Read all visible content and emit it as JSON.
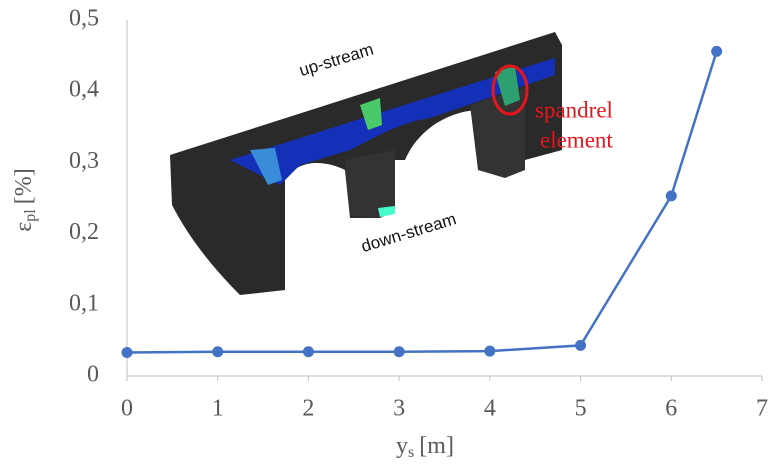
{
  "chart_data": {
    "type": "line",
    "xlabel": {
      "symbol": "y",
      "subscript": "s",
      "unit": "[m]"
    },
    "ylabel": {
      "symbol": "ε",
      "subscript": "pl",
      "unit": "[%]"
    },
    "x": [
      0,
      1,
      2,
      3,
      4,
      5,
      6,
      6.5
    ],
    "series": [
      {
        "color": "#4472c4",
        "values": [
          0.033,
          0.034,
          0.034,
          0.034,
          0.035,
          0.043,
          0.253,
          0.456
        ]
      }
    ],
    "xlim": [
      0,
      7
    ],
    "xticks": [
      0,
      1,
      2,
      3,
      4,
      5,
      6,
      7
    ],
    "ylim": [
      0,
      0.5
    ],
    "yticks": [
      0,
      {
        "value": 0.1,
        "label": "0,1"
      },
      {
        "value": 0.2,
        "label": "0,2"
      },
      {
        "value": 0.3,
        "label": "0,3"
      },
      {
        "value": 0.4,
        "label": "0,4"
      },
      {
        "value": 0.5,
        "label": "0,5"
      }
    ],
    "grid": false,
    "annotations": [
      "up-stream",
      "down-stream",
      "spandrel",
      "element"
    ]
  }
}
